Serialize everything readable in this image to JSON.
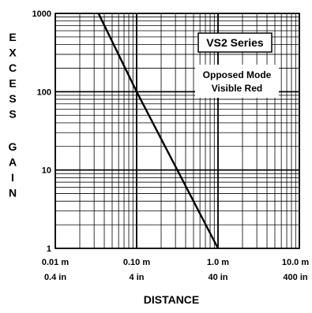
{
  "chart_data": {
    "type": "line",
    "xlabel": "DISTANCE",
    "ylabel": "EXCESS GAIN",
    "xscale": "log",
    "yscale": "log",
    "xlim": [
      0.01,
      10.0
    ],
    "ylim": [
      1,
      1000
    ],
    "grid": true,
    "x_tick_labels": [
      {
        "value": 0.01,
        "metric": "0.01 m",
        "imperial": "0.4 in"
      },
      {
        "value": 0.1,
        "metric": "0.10 m",
        "imperial": "4 in"
      },
      {
        "value": 1.0,
        "metric": "1.0 m",
        "imperial": "40 in"
      },
      {
        "value": 10.0,
        "metric": "10.0 m",
        "imperial": "400 in"
      }
    ],
    "y_tick_labels": [
      {
        "value": 1,
        "label": "1"
      },
      {
        "value": 10,
        "label": "10"
      },
      {
        "value": 100,
        "label": "100"
      },
      {
        "value": 1000,
        "label": "1000"
      }
    ],
    "series": [
      {
        "x": [
          0.034,
          0.1,
          1.0
        ],
        "y": [
          1000,
          100,
          1
        ]
      }
    ],
    "annotations": {
      "series_title": "VS2 Series",
      "mode_line1": "Opposed Mode",
      "mode_line2": "Visible Red"
    },
    "colors": {
      "line": "#000000",
      "grid": "#000000",
      "background": "#ffffff"
    }
  }
}
